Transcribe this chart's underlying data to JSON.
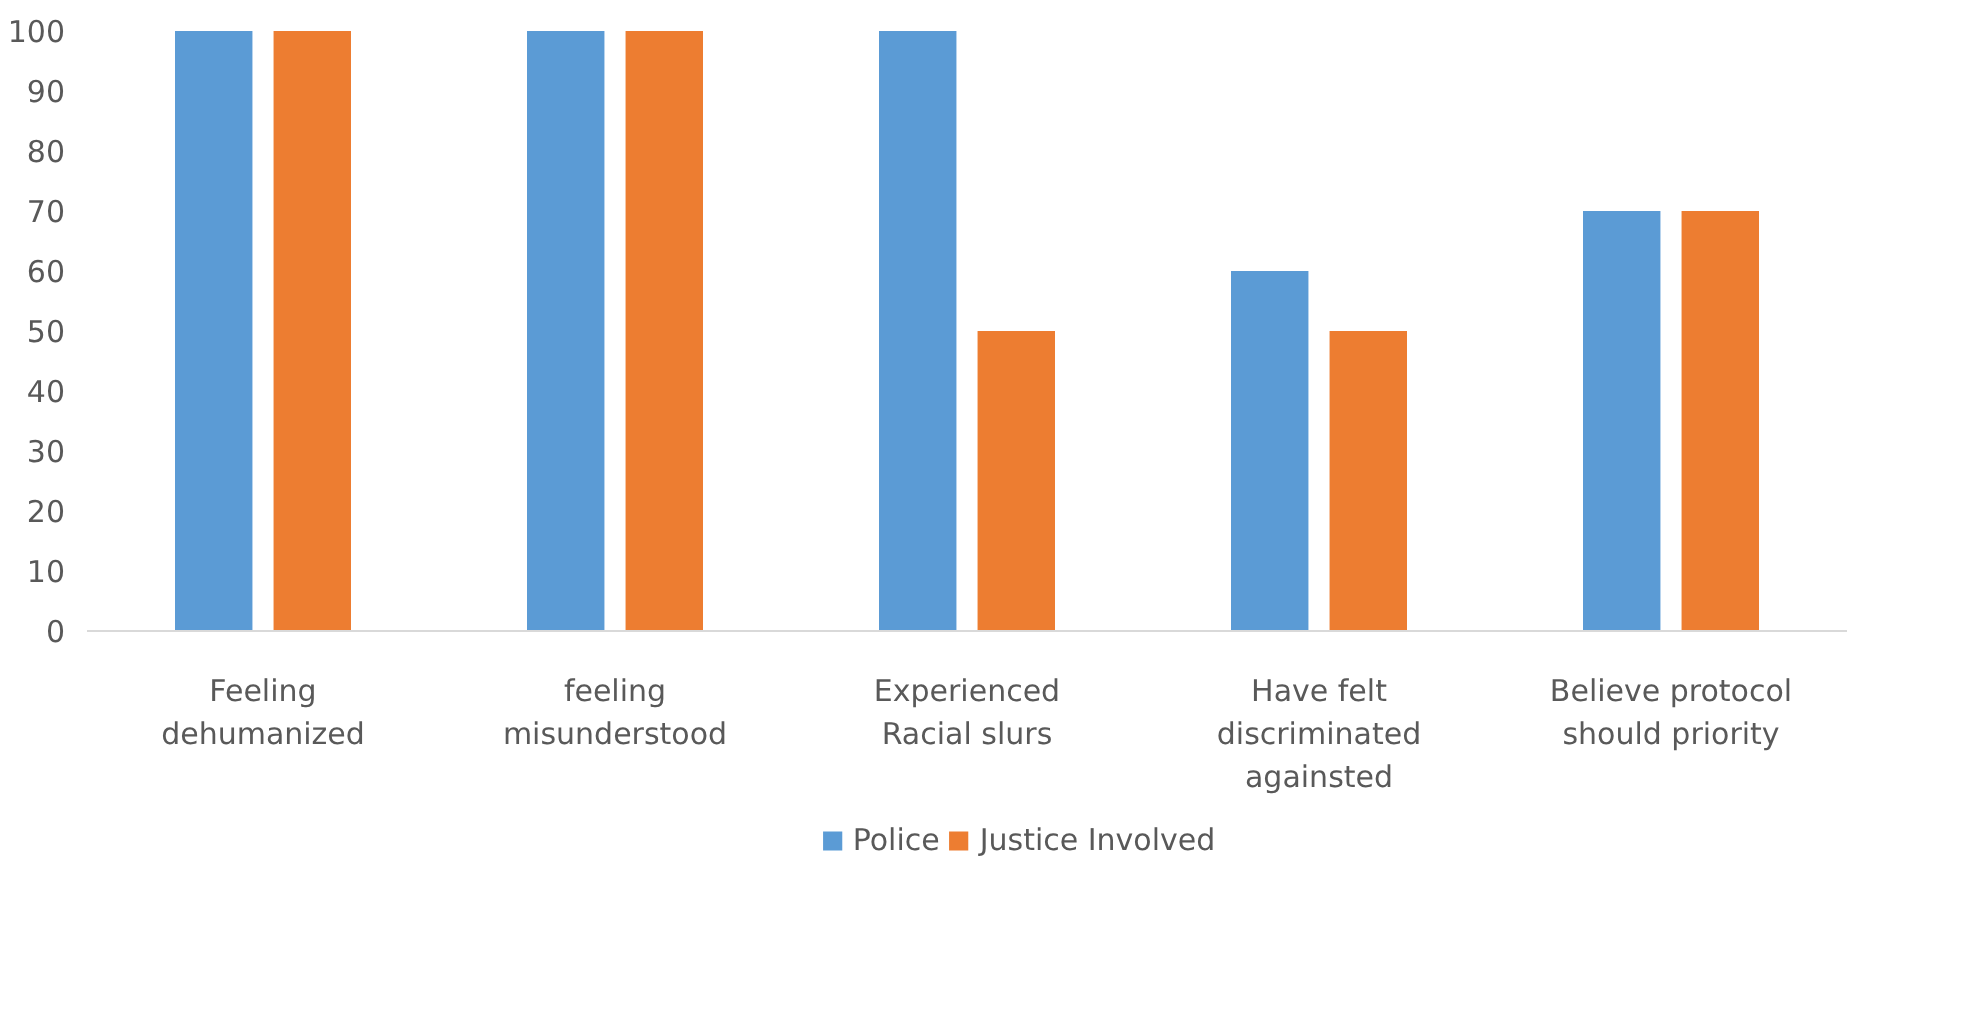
{
  "chart_data": {
    "type": "bar",
    "categories": [
      "Feeling dehumanized",
      "feeling misunderstood",
      "Experienced Racial slurs",
      "Have felt discriminated againsted",
      "Believe protocol should priority"
    ],
    "series": [
      {
        "name": "Police",
        "color": "#5b9bd5",
        "values": [
          100,
          100,
          100,
          60,
          70
        ]
      },
      {
        "name": "Justice Involved",
        "color": "#ed7d31",
        "values": [
          100,
          100,
          50,
          50,
          70
        ]
      }
    ],
    "ylim": [
      0,
      100
    ],
    "yticks": [
      0,
      10,
      20,
      30,
      40,
      50,
      60,
      70,
      80,
      90,
      100
    ],
    "grid": false,
    "legend": "bottom"
  }
}
